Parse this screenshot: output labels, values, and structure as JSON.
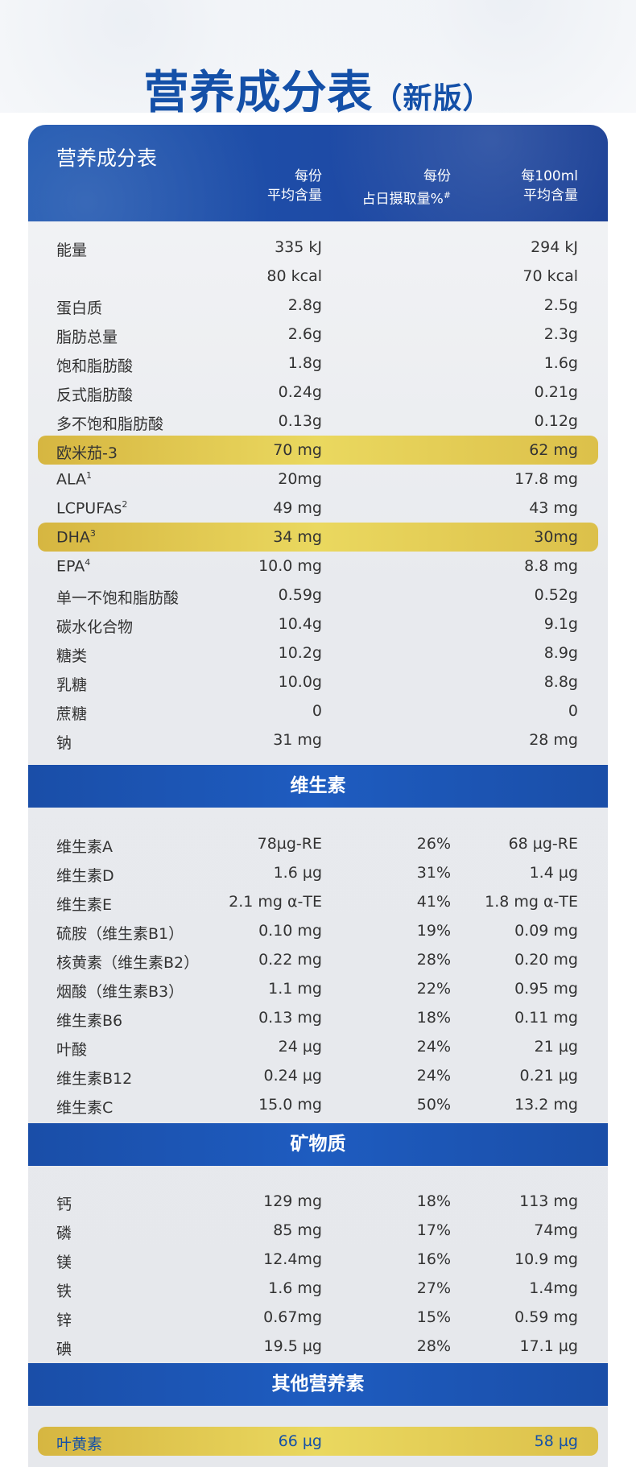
{
  "page": {
    "title": "营养成分表",
    "title_suffix": "（新版）"
  },
  "table": {
    "title": "营养成分表",
    "col1_line1": "每份",
    "col1_line2": "平均含量",
    "col2_line1": "每份",
    "col2_line2": "占日摄取量%",
    "col2_mark": "#",
    "col3_line1": "每100ml",
    "col3_line2": "平均含量"
  },
  "sections": {
    "vitamins": "维生素",
    "minerals": "矿物质",
    "others": "其他营养素"
  },
  "rows": [
    {
      "name": "能量",
      "sup": "",
      "per_serving": "335 kJ",
      "daily": "",
      "per_100ml": "294 kJ",
      "highlight": false
    },
    {
      "name": "",
      "sup": "",
      "per_serving": "80 kcal",
      "daily": "",
      "per_100ml": "70 kcal",
      "highlight": false
    },
    {
      "name": "蛋白质",
      "sup": "",
      "per_serving": "2.8g",
      "daily": "",
      "per_100ml": "2.5g",
      "highlight": false
    },
    {
      "name": "脂肪总量",
      "sup": "",
      "per_serving": "2.6g",
      "daily": "",
      "per_100ml": "2.3g",
      "highlight": false
    },
    {
      "name": "饱和脂肪酸",
      "sup": "",
      "per_serving": "1.8g",
      "daily": "",
      "per_100ml": "1.6g",
      "highlight": false
    },
    {
      "name": "反式脂肪酸",
      "sup": "",
      "per_serving": "0.24g",
      "daily": "",
      "per_100ml": "0.21g",
      "highlight": false
    },
    {
      "name": "多不饱和脂肪酸",
      "sup": "",
      "per_serving": "0.13g",
      "daily": "",
      "per_100ml": "0.12g",
      "highlight": false
    },
    {
      "name": "欧米茄-3",
      "sup": "",
      "per_serving": "70 mg",
      "daily": "",
      "per_100ml": "62 mg",
      "highlight": true
    },
    {
      "name": "ALA",
      "sup": "1",
      "per_serving": "20mg",
      "daily": "",
      "per_100ml": "17.8 mg",
      "highlight": false
    },
    {
      "name": "LCPUFAs",
      "sup": "2",
      "per_serving": "49 mg",
      "daily": "",
      "per_100ml": "43 mg",
      "highlight": false
    },
    {
      "name": "DHA",
      "sup": "3",
      "per_serving": "34 mg",
      "daily": "",
      "per_100ml": "30mg",
      "highlight": true
    },
    {
      "name": "EPA",
      "sup": "4",
      "per_serving": "10.0 mg",
      "daily": "",
      "per_100ml": "8.8 mg",
      "highlight": false
    },
    {
      "name": "单一不饱和脂肪酸",
      "sup": "",
      "per_serving": "0.59g",
      "daily": "",
      "per_100ml": "0.52g",
      "highlight": false
    },
    {
      "name": "碳水化合物",
      "sup": "",
      "per_serving": "10.4g",
      "daily": "",
      "per_100ml": "9.1g",
      "highlight": false
    },
    {
      "name": "糖类",
      "sup": "",
      "per_serving": "10.2g",
      "daily": "",
      "per_100ml": "8.9g",
      "highlight": false
    },
    {
      "name": "乳糖",
      "sup": "",
      "per_serving": "10.0g",
      "daily": "",
      "per_100ml": "8.8g",
      "highlight": false
    },
    {
      "name": "蔗糖",
      "sup": "",
      "per_serving": "0",
      "daily": "",
      "per_100ml": "0",
      "highlight": false
    },
    {
      "name": "钠",
      "sup": "",
      "per_serving": "31 mg",
      "daily": "",
      "per_100ml": "28 mg",
      "highlight": false
    },
    {
      "name": "维生素A",
      "sup": "",
      "per_serving": "78µg-RE",
      "daily": "26%",
      "per_100ml": "68 µg-RE",
      "highlight": false
    },
    {
      "name": "维生素D",
      "sup": "",
      "per_serving": "1.6 µg",
      "daily": "31%",
      "per_100ml": "1.4 µg",
      "highlight": false
    },
    {
      "name": "维生素E",
      "sup": "",
      "per_serving": "2.1 mg α-TE",
      "daily": "41%",
      "per_100ml": "1.8 mg α-TE",
      "highlight": false
    },
    {
      "name": "硫胺（维生素B1）",
      "sup": "",
      "per_serving": "0.10 mg",
      "daily": "19%",
      "per_100ml": "0.09 mg",
      "highlight": false
    },
    {
      "name": "核黄素（维生素B2）",
      "sup": "",
      "per_serving": "0.22 mg",
      "daily": "28%",
      "per_100ml": "0.20 mg",
      "highlight": false
    },
    {
      "name": "烟酸（维生素B3）",
      "sup": "",
      "per_serving": "1.1 mg",
      "daily": "22%",
      "per_100ml": "0.95 mg",
      "highlight": false
    },
    {
      "name": "维生素B6",
      "sup": "",
      "per_serving": "0.13 mg",
      "daily": "18%",
      "per_100ml": "0.11 mg",
      "highlight": false
    },
    {
      "name": "叶酸",
      "sup": "",
      "per_serving": "24 µg",
      "daily": "24%",
      "per_100ml": "21 µg",
      "highlight": false
    },
    {
      "name": "维生素B12",
      "sup": "",
      "per_serving": "0.24 µg",
      "daily": "24%",
      "per_100ml": "0.21 µg",
      "highlight": false
    },
    {
      "name": "维生素C",
      "sup": "",
      "per_serving": "15.0 mg",
      "daily": "50%",
      "per_100ml": "13.2 mg",
      "highlight": false
    },
    {
      "name": "钙",
      "sup": "",
      "per_serving": "129 mg",
      "daily": "18%",
      "per_100ml": "113 mg",
      "highlight": false
    },
    {
      "name": "磷",
      "sup": "",
      "per_serving": "85 mg",
      "daily": "17%",
      "per_100ml": "74mg",
      "highlight": false
    },
    {
      "name": "镁",
      "sup": "",
      "per_serving": "12.4mg",
      "daily": "16%",
      "per_100ml": "10.9 mg",
      "highlight": false
    },
    {
      "name": "铁",
      "sup": "",
      "per_serving": "1.6 mg",
      "daily": "27%",
      "per_100ml": "1.4mg",
      "highlight": false
    },
    {
      "name": "锌",
      "sup": "",
      "per_serving": "0.67mg",
      "daily": "15%",
      "per_100ml": "0.59 mg",
      "highlight": false
    },
    {
      "name": "碘",
      "sup": "",
      "per_serving": "19.5 µg",
      "daily": "28%",
      "per_100ml": "17.1 µg",
      "highlight": false
    },
    {
      "name": "叶黄素",
      "sup": "",
      "per_serving": "66 µg",
      "daily": "",
      "per_100ml": "58 µg",
      "highlight": true
    }
  ],
  "colors": {
    "brand_blue": "#1450a8",
    "highlight_gold": "#e3cc55",
    "row_text": "#333333"
  }
}
